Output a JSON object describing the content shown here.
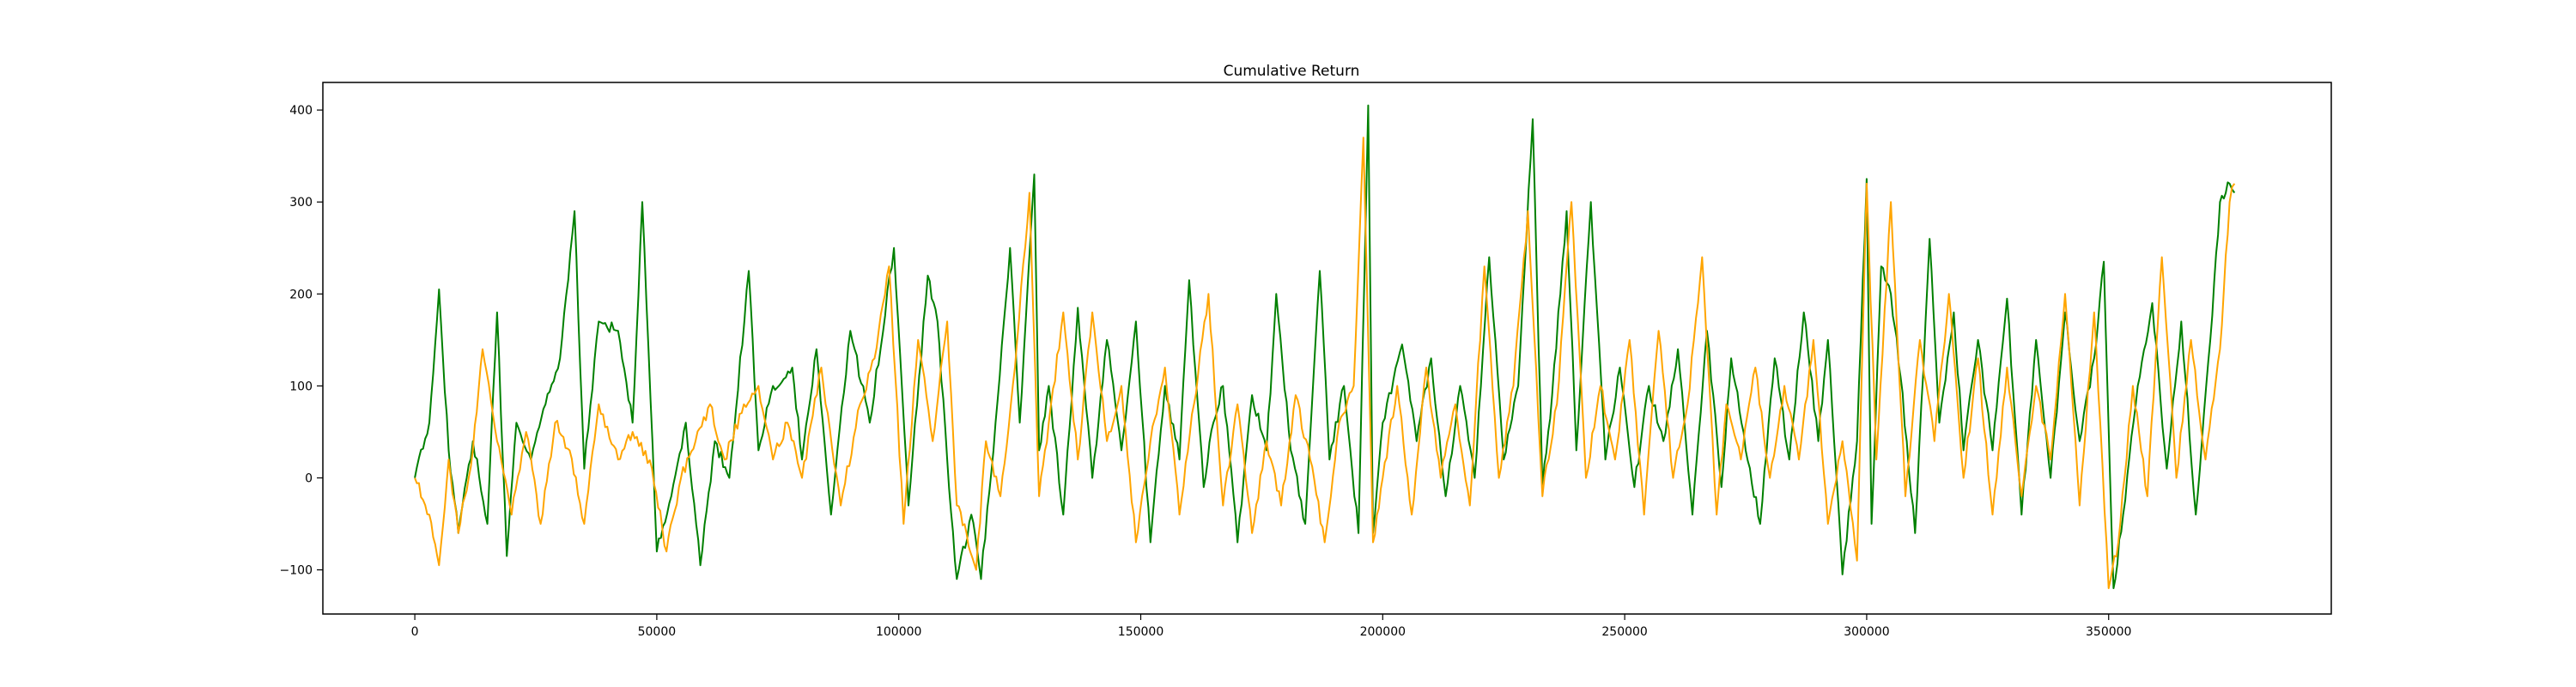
{
  "chart_data": {
    "type": "line",
    "title": "Cumulative Return",
    "xlabel": "",
    "ylabel": "",
    "xlim": [
      -19000,
      396000
    ],
    "ylim": [
      -148,
      430
    ],
    "grid": false,
    "legend": "none",
    "x_ticks": [
      0,
      50000,
      100000,
      150000,
      200000,
      250000,
      300000,
      350000
    ],
    "x_tick_labels": [
      "0",
      "50000",
      "100000",
      "150000",
      "200000",
      "250000",
      "300000",
      "350000"
    ],
    "y_ticks": [
      -100,
      0,
      100,
      200,
      300,
      400
    ],
    "y_tick_labels": [
      "−100",
      "0",
      "100",
      "200",
      "300",
      "400"
    ],
    "series": [
      {
        "color": "#008000",
        "x": [
          0,
          3000,
          5000,
          7000,
          9000,
          12000,
          15000,
          17000,
          19000,
          21000,
          24000,
          27000,
          30000,
          33000,
          35000,
          38000,
          42000,
          45000,
          47000,
          50000,
          53000,
          56000,
          59000,
          62000,
          65000,
          69000,
          71000,
          74000,
          78000,
          80000,
          83000,
          86000,
          90000,
          94000,
          99000,
          102000,
          106000,
          108000,
          110000,
          112000,
          115000,
          117000,
          120000,
          123000,
          125000,
          128000,
          129000,
          131000,
          134000,
          137000,
          140000,
          143000,
          146000,
          149000,
          152000,
          155000,
          158000,
          160000,
          163000,
          165000,
          167000,
          170000,
          173000,
          176000,
          178000,
          181000,
          184000,
          187000,
          189000,
          192000,
          195000,
          197000,
          198000,
          200000,
          204000,
          207000,
          210000,
          213000,
          216000,
          219000,
          222000,
          225000,
          228000,
          231000,
          233000,
          235000,
          238000,
          240000,
          243000,
          246000,
          249000,
          252000,
          255000,
          258000,
          261000,
          264000,
          267000,
          270000,
          272000,
          275000,
          278000,
          281000,
          284000,
          287000,
          290000,
          292000,
          295000,
          298000,
          300000,
          301000,
          303000,
          305000,
          307000,
          310000,
          313000,
          315000,
          318000,
          320000,
          323000,
          326000,
          329000,
          332000,
          335000,
          338000,
          341000,
          344000,
          347000,
          349000,
          351000,
          353000,
          356000,
          359000,
          362000,
          365000,
          368000,
          371000,
          373000,
          375000,
          376000
        ],
        "y": [
          0,
          60,
          205,
          30,
          -60,
          40,
          -50,
          180,
          -85,
          60,
          20,
          80,
          130,
          290,
          10,
          170,
          160,
          60,
          300,
          -80,
          -20,
          60,
          -95,
          40,
          0,
          225,
          30,
          100,
          120,
          20,
          140,
          -40,
          160,
          60,
          250,
          -30,
          220,
          170,
          20,
          -110,
          -40,
          -110,
          60,
          250,
          60,
          330,
          30,
          100,
          -40,
          185,
          0,
          150,
          30,
          170,
          -70,
          100,
          20,
          215,
          -10,
          60,
          100,
          -70,
          90,
          30,
          200,
          30,
          -50,
          225,
          20,
          100,
          -60,
          405,
          -60,
          60,
          145,
          40,
          130,
          -20,
          100,
          0,
          240,
          20,
          100,
          390,
          -10,
          90,
          290,
          30,
          300,
          20,
          120,
          -10,
          100,
          40,
          140,
          -40,
          160,
          -10,
          130,
          30,
          -50,
          130,
          20,
          180,
          40,
          150,
          -105,
          40,
          325,
          -50,
          230,
          200,
          110,
          -60,
          260,
          60,
          180,
          30,
          150,
          30,
          195,
          -40,
          150,
          0,
          180,
          40,
          130,
          235,
          -120,
          -40,
          100,
          190,
          10,
          170,
          -40,
          150,
          300,
          320,
          310
        ]
      },
      {
        "color": "#FFA500",
        "x": [
          0,
          3000,
          5000,
          7000,
          9000,
          12000,
          14000,
          17000,
          20000,
          23000,
          26000,
          29000,
          32000,
          35000,
          38000,
          42000,
          45000,
          49000,
          52000,
          55000,
          58000,
          61000,
          64000,
          68000,
          71000,
          74000,
          77000,
          80000,
          84000,
          88000,
          92000,
          95000,
          98000,
          101000,
          104000,
          107000,
          110000,
          112000,
          114000,
          116000,
          118000,
          121000,
          124000,
          127000,
          129000,
          131000,
          134000,
          137000,
          140000,
          143000,
          146000,
          149000,
          152000,
          155000,
          158000,
          161000,
          164000,
          167000,
          170000,
          173000,
          176000,
          179000,
          182000,
          185000,
          188000,
          191000,
          194000,
          196000,
          198000,
          200000,
          203000,
          206000,
          209000,
          212000,
          215000,
          218000,
          221000,
          224000,
          227000,
          230000,
          233000,
          236000,
          239000,
          242000,
          245000,
          248000,
          251000,
          254000,
          257000,
          260000,
          263000,
          266000,
          269000,
          271000,
          274000,
          277000,
          280000,
          283000,
          286000,
          289000,
          292000,
          295000,
          298000,
          300000,
          302000,
          305000,
          308000,
          311000,
          314000,
          317000,
          320000,
          323000,
          326000,
          329000,
          332000,
          335000,
          338000,
          341000,
          344000,
          347000,
          350000,
          352000,
          355000,
          358000,
          361000,
          364000,
          367000,
          370000,
          373000,
          375000,
          376000
        ],
        "y": [
          0,
          -40,
          -95,
          20,
          -60,
          30,
          140,
          40,
          -40,
          50,
          -50,
          60,
          30,
          -50,
          80,
          20,
          50,
          10,
          -80,
          0,
          40,
          80,
          20,
          80,
          100,
          20,
          60,
          0,
          120,
          -30,
          80,
          130,
          230,
          -50,
          150,
          40,
          170,
          -30,
          -60,
          -100,
          40,
          -20,
          120,
          310,
          -20,
          60,
          180,
          20,
          180,
          40,
          100,
          -70,
          40,
          120,
          -40,
          80,
          200,
          -30,
          80,
          -60,
          40,
          -30,
          90,
          20,
          -70,
          60,
          100,
          370,
          -70,
          0,
          100,
          -40,
          120,
          0,
          80,
          -30,
          230,
          0,
          100,
          290,
          -20,
          80,
          300,
          0,
          100,
          20,
          150,
          -40,
          160,
          0,
          80,
          240,
          -40,
          80,
          20,
          120,
          0,
          100,
          20,
          150,
          -50,
          40,
          -90,
          320,
          20,
          300,
          -20,
          150,
          40,
          200,
          0,
          130,
          -40,
          120,
          -20,
          100,
          20,
          200,
          -30,
          180,
          -120,
          -70,
          100,
          -20,
          240,
          0,
          150,
          20,
          140,
          300,
          320
        ]
      }
    ]
  }
}
